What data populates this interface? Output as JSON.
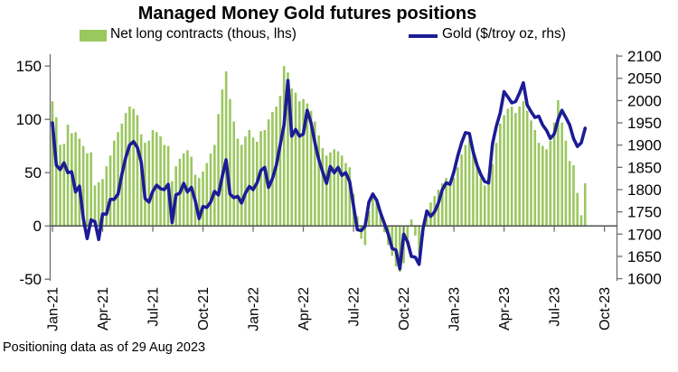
{
  "header": {
    "title": "Managed Money Gold futures positions"
  },
  "legend": {
    "bar_label": "Net long contracts (thous, lhs)",
    "line_label": "Gold ($/troy oz, rhs)"
  },
  "footer": {
    "text": "Positioning data as of 29 Aug 2023"
  },
  "colors": {
    "bar_green": "#9bc75f",
    "line_navy": "#1c1c96",
    "axis_gray": "#6e6e6e",
    "zero_line": "#404040",
    "text_black": "#000000"
  },
  "chart_data": {
    "type": "combo",
    "title": "Managed Money Gold futures positions",
    "x_axis": {
      "tick_labels": [
        "Jan-21",
        "Apr-21",
        "Jul-21",
        "Oct-21",
        "Jan-22",
        "Apr-22",
        "Jul-22",
        "Oct-22",
        "Jan-23",
        "Apr-23",
        "Jul-23",
        "Oct-23"
      ],
      "tick_positions": [
        0,
        13,
        26,
        39,
        52,
        65,
        78,
        91,
        104,
        117,
        130,
        143
      ],
      "points_per_quarter": 13,
      "frequency": "weekly"
    },
    "left_axis": {
      "label": "Net long contracts (thous)",
      "min": -50,
      "max": 150,
      "ticks": [
        150,
        100,
        50,
        0,
        -50
      ]
    },
    "right_axis": {
      "label": "Gold ($/troy oz)",
      "min": 1600,
      "max": 2100,
      "ticks": [
        2100,
        2050,
        2000,
        1950,
        1900,
        1850,
        1800,
        1750,
        1700,
        1650,
        1600
      ]
    },
    "grid": false,
    "legend_position": "top",
    "series": [
      {
        "name": "Net long contracts (thous, lhs)",
        "type": "bar",
        "axis": "left",
        "color": "#9bc75f",
        "values": [
          117,
          102,
          76,
          77,
          95,
          87,
          88,
          82,
          75,
          68,
          69,
          38,
          41,
          44,
          56,
          66,
          80,
          88,
          96,
          106,
          112,
          110,
          104,
          86,
          78,
          80,
          90,
          88,
          84,
          76,
          75,
          42,
          56,
          63,
          68,
          71,
          65,
          48,
          45,
          51,
          59,
          68,
          76,
          105,
          128,
          145,
          119,
          98,
          82,
          76,
          84,
          90,
          83,
          79,
          89,
          90,
          100,
          107,
          112,
          122,
          150,
          144,
          129,
          125,
          117,
          119,
          115,
          108,
          98,
          85,
          73,
          66,
          69,
          72,
          70,
          66,
          59,
          55,
          30,
          9,
          -12,
          -18,
          14,
          30,
          25,
          11,
          -6,
          -18,
          -28,
          -38,
          -43,
          -35,
          -12,
          6,
          -9,
          -26,
          -10,
          12,
          22,
          28,
          34,
          40,
          45,
          42,
          45,
          55,
          67,
          76,
          81,
          68,
          56,
          45,
          38,
          42,
          58,
          78,
          96,
          104,
          110,
          112,
          106,
          112,
          117,
          108,
          99,
          90,
          78,
          75,
          72,
          80,
          97,
          118,
          97,
          80,
          61,
          57,
          31,
          10,
          40
        ]
      },
      {
        "name": "Gold ($/troy oz, rhs)",
        "type": "line",
        "axis": "right",
        "color": "#1c1c96",
        "values": [
          1950,
          1855,
          1845,
          1860,
          1838,
          1840,
          1795,
          1808,
          1735,
          1690,
          1732,
          1728,
          1688,
          1745,
          1745,
          1778,
          1778,
          1790,
          1835,
          1872,
          1900,
          1908,
          1895,
          1862,
          1780,
          1772,
          1796,
          1810,
          1802,
          1800,
          1812,
          1726,
          1788,
          1792,
          1814,
          1795,
          1805,
          1775,
          1735,
          1762,
          1760,
          1772,
          1796,
          1788,
          1830,
          1867,
          1790,
          1782,
          1785,
          1770,
          1792,
          1807,
          1800,
          1815,
          1843,
          1850,
          1805,
          1825,
          1855,
          1900,
          1945,
          2045,
          1920,
          1935,
          1920,
          1925,
          1978,
          1950,
          1905,
          1868,
          1840,
          1814,
          1852,
          1838,
          1850,
          1832,
          1838,
          1818,
          1763,
          1710,
          1708,
          1718,
          1772,
          1790,
          1776,
          1748,
          1724,
          1700,
          1668,
          1664,
          1622,
          1700,
          1683,
          1650,
          1648,
          1632,
          1712,
          1752,
          1740,
          1750,
          1770,
          1800,
          1815,
          1812,
          1840,
          1875,
          1905,
          1928,
          1926,
          1885,
          1855,
          1833,
          1818,
          1815,
          1903,
          1942,
          1972,
          2020,
          2008,
          1995,
          1998,
          2017,
          2040,
          1990,
          1975,
          1962,
          1965,
          1945,
          1933,
          1915,
          1925,
          1958,
          1978,
          1962,
          1945,
          1915,
          1897,
          1905,
          1938
        ]
      }
    ]
  }
}
